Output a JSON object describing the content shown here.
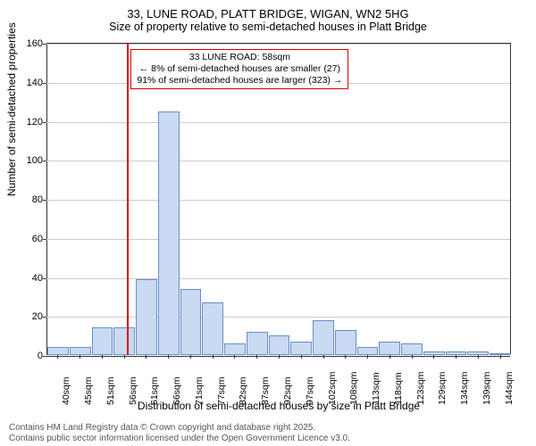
{
  "title": "33, LUNE ROAD, PLATT BRIDGE, WIGAN, WN2 5HG",
  "subtitle": "Size of property relative to semi-detached houses in Platt Bridge",
  "y_axis_label": "Number of semi-detached properties",
  "x_axis_label": "Distribution of semi-detached houses by size in Platt Bridge",
  "chart": {
    "type": "histogram",
    "ylim": [
      0,
      160
    ],
    "ytick_step": 20,
    "x_categories": [
      "40sqm",
      "45sqm",
      "51sqm",
      "56sqm",
      "61sqm",
      "66sqm",
      "71sqm",
      "77sqm",
      "82sqm",
      "87sqm",
      "92sqm",
      "97sqm",
      "102sqm",
      "108sqm",
      "113sqm",
      "118sqm",
      "123sqm",
      "129sqm",
      "134sqm",
      "139sqm",
      "144sqm"
    ],
    "values": [
      4,
      4,
      14,
      14,
      39,
      125,
      34,
      27,
      6,
      12,
      10,
      7,
      18,
      13,
      4,
      7,
      6,
      2,
      2,
      2,
      1
    ],
    "bar_fill": "#c9daf2",
    "bar_border": "#6a8dc7",
    "background": "#ffffff",
    "grid_color": "#cccccc",
    "axis_color": "#333333",
    "marker": {
      "color": "#d00",
      "x_category_index": 3.65,
      "annotation": {
        "line1": "33 LUNE ROAD: 58sqm",
        "line2": "← 8% of semi-detached houses are smaller (27)",
        "line3": "91% of semi-detached houses are larger (323) →"
      }
    }
  },
  "footer": {
    "line1": "Contains HM Land Registry data © Crown copyright and database right 2025.",
    "line2": "Contains public sector information licensed under the Open Government Licence v3.0."
  }
}
